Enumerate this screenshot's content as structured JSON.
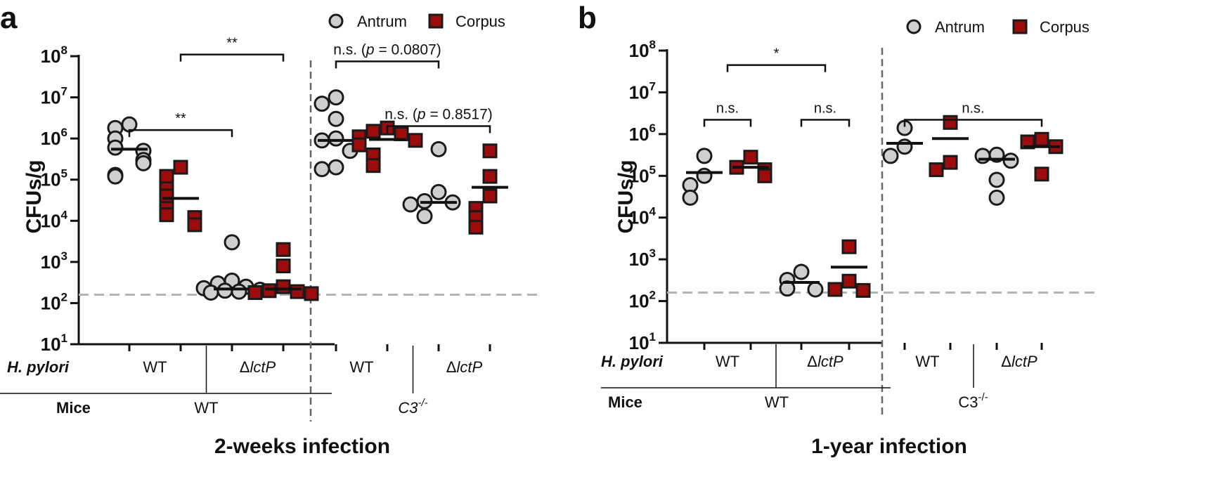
{
  "colors": {
    "antrum_fill": "#cfcfcf",
    "corpus_fill": "#9b0d0d",
    "marker_stroke": "#1a1a1a",
    "limit_line": "#b4b4b4",
    "divider": "#666666",
    "axis": "#111111"
  },
  "chart_data": [
    {
      "panel": "a",
      "type": "scatter",
      "title": "2-weeks infection",
      "ylabel": "CFUs/g",
      "yscale": "log",
      "ylim": [
        10,
        100000000
      ],
      "yticks": [
        {
          "base": "10",
          "exp": "1"
        },
        {
          "base": "10",
          "exp": "2"
        },
        {
          "base": "10",
          "exp": "3"
        },
        {
          "base": "10",
          "exp": "4"
        },
        {
          "base": "10",
          "exp": "5"
        },
        {
          "base": "10",
          "exp": "6"
        },
        {
          "base": "10",
          "exp": "7"
        },
        {
          "base": "10",
          "exp": "8"
        }
      ],
      "legend": {
        "position": "top-right",
        "antrum": "Antrum",
        "corpus": "Corpus"
      },
      "detection_limit": 160,
      "row1_label": "H. pylori",
      "row2_label": "Mice",
      "groups": [
        {
          "strain": "WT",
          "strain_prefix": "",
          "strain_italic": false
        },
        {
          "strain": "lctP",
          "strain_prefix": "Δ",
          "strain_italic": true
        },
        {
          "strain": "WT",
          "strain_prefix": "",
          "strain_italic": false
        },
        {
          "strain": "lctP",
          "strain_prefix": "Δ",
          "strain_italic": true
        }
      ],
      "mice": [
        {
          "label": "WT",
          "sup": "",
          "italic": false
        },
        {
          "label": "C3",
          "sup": "-/-",
          "italic": true
        }
      ],
      "series": [
        {
          "name": "Antrum",
          "group": 0,
          "values": [
            2200000,
            1800000,
            1000000,
            600000,
            500000,
            300000,
            250000,
            130000,
            120000
          ],
          "median": 550000
        },
        {
          "name": "Corpus",
          "group": 0,
          "values": [
            200000,
            120000,
            60000,
            40000,
            20000,
            14000,
            12000,
            8000
          ],
          "median": 35000
        },
        {
          "name": "Antrum",
          "group": 1,
          "values": [
            3000,
            350,
            300,
            250,
            230,
            210,
            200,
            190,
            180
          ],
          "median": 220
        },
        {
          "name": "Corpus",
          "group": 1,
          "values": [
            2000,
            800,
            250,
            200,
            190,
            180,
            170
          ],
          "median": 220
        },
        {
          "name": "Antrum",
          "group": 2,
          "values": [
            10000000,
            7000000,
            3000000,
            1000000,
            900000,
            500000,
            200000,
            180000
          ],
          "median": 900000
        },
        {
          "name": "Corpus",
          "group": 2,
          "values": [
            1800000,
            1500000,
            1300000,
            1100000,
            900000,
            700000,
            400000,
            220000
          ],
          "median": 950000
        },
        {
          "name": "Antrum",
          "group": 3,
          "values": [
            550000,
            50000,
            30000,
            28000,
            25000,
            13000
          ],
          "median": 28000
        },
        {
          "name": "Corpus",
          "group": 3,
          "values": [
            500000,
            120000,
            40000,
            20000,
            12000,
            7000
          ],
          "median": 65000
        }
      ],
      "brackets": [
        {
          "from": 0,
          "to": 2,
          "y": 1600000,
          "label": "**",
          "label_p": ""
        },
        {
          "from": 1,
          "to": 3,
          "y": 110000000,
          "label": "**",
          "label_p": ""
        },
        {
          "from": 4,
          "to": 6,
          "y": 75000000,
          "label": "n.s. (",
          "label_p": "p",
          "label_rest": " = 0.0807)"
        },
        {
          "from": 5,
          "to": 7,
          "y": 2000000,
          "label": "n.s. (",
          "label_p": "p",
          "label_rest": " = 0.8517)"
        }
      ]
    },
    {
      "panel": "b",
      "type": "scatter",
      "title": "1-year infection",
      "ylabel": "CFUs/g",
      "yscale": "log",
      "ylim": [
        10,
        100000000
      ],
      "yticks": [
        {
          "base": "10",
          "exp": "1"
        },
        {
          "base": "10",
          "exp": "2"
        },
        {
          "base": "10",
          "exp": "3"
        },
        {
          "base": "10",
          "exp": "4"
        },
        {
          "base": "10",
          "exp": "5"
        },
        {
          "base": "10",
          "exp": "6"
        },
        {
          "base": "10",
          "exp": "7"
        },
        {
          "base": "10",
          "exp": "8"
        }
      ],
      "legend": {
        "position": "top-right",
        "antrum": "Antrum",
        "corpus": "Corpus"
      },
      "detection_limit": 160,
      "row1_label": "H. pylori",
      "row2_label": "Mice",
      "groups": [
        {
          "strain": "WT",
          "strain_prefix": "",
          "strain_italic": false
        },
        {
          "strain": "lctP",
          "strain_prefix": "Δ",
          "strain_italic": true
        },
        {
          "strain": "WT",
          "strain_prefix": "",
          "strain_italic": false
        },
        {
          "strain": "lctP",
          "strain_prefix": "Δ",
          "strain_italic": true
        }
      ],
      "mice": [
        {
          "label": "WT",
          "sup": "",
          "italic": false
        },
        {
          "label": "C3",
          "sup": "-/-",
          "italic": false
        }
      ],
      "series": [
        {
          "name": "Antrum",
          "group": 0,
          "values": [
            300000,
            100000,
            60000,
            30000
          ],
          "median": 120000
        },
        {
          "name": "Corpus",
          "group": 0,
          "values": [
            280000,
            160000,
            140000,
            100000
          ],
          "median": 160000
        },
        {
          "name": "Antrum",
          "group": 1,
          "values": [
            500,
            320,
            200,
            190
          ],
          "median": 280
        },
        {
          "name": "Corpus",
          "group": 1,
          "values": [
            2000,
            300,
            190,
            180
          ],
          "median": 650
        },
        {
          "name": "Antrum",
          "group": 2,
          "values": [
            1400000,
            500000,
            300000
          ],
          "median": 600000
        },
        {
          "name": "Corpus",
          "group": 2,
          "values": [
            1900000,
            210000,
            140000
          ],
          "median": 780000
        },
        {
          "name": "Antrum",
          "group": 3,
          "values": [
            320000,
            300000,
            230000,
            80000,
            30000
          ],
          "median": 250000
        },
        {
          "name": "Corpus",
          "group": 3,
          "values": [
            750000,
            650000,
            500000,
            110000
          ],
          "median": 500000
        }
      ],
      "brackets": [
        {
          "from": 0,
          "to": 1,
          "y": 2200000,
          "label": "n.s.",
          "label_p": ""
        },
        {
          "from": 2,
          "to": 3,
          "y": 2200000,
          "label": "n.s.",
          "label_p": ""
        },
        {
          "from": 4,
          "to": 7,
          "y": 2200000,
          "label": "n.s.",
          "label_p": ""
        },
        {
          "from": 0.5,
          "to": 2.5,
          "y": 45000000,
          "label": "*",
          "label_p": ""
        }
      ]
    }
  ]
}
